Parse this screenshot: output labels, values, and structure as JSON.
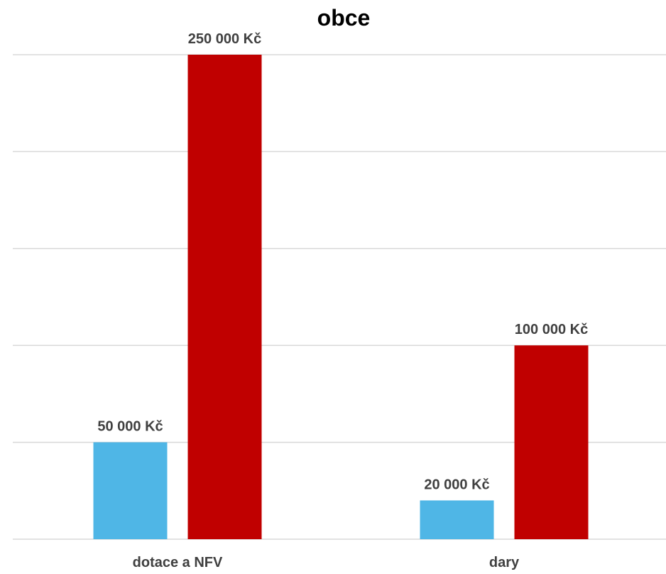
{
  "chart_data": {
    "type": "bar",
    "title": "obce",
    "categories": [
      "dotace a NFV",
      "dary"
    ],
    "series": [
      {
        "color": "#4fb6e6",
        "values": [
          50000,
          20000
        ],
        "labels": [
          "50 000 Kč",
          "20 000 Kč"
        ]
      },
      {
        "color": "#c00000",
        "values": [
          250000,
          100000
        ],
        "labels": [
          "250 000 Kč",
          "100 000 Kč"
        ]
      }
    ],
    "ylim": [
      0,
      250000
    ],
    "y_gridlines": [
      0,
      50000,
      100000,
      150000,
      200000,
      250000
    ],
    "grid": true,
    "legend": "none",
    "xlabel": "",
    "ylabel": ""
  }
}
